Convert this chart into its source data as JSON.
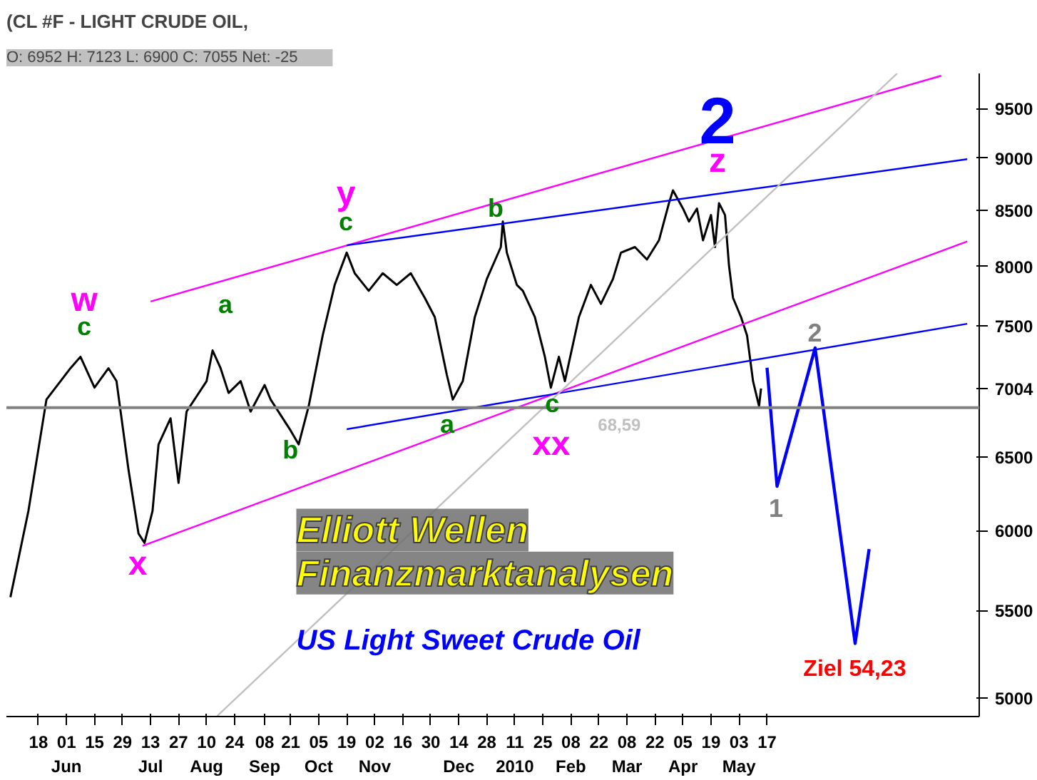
{
  "chart_data": {
    "type": "line",
    "title": "(CL #F - LIGHT CRUDE OIL,",
    "subtitle": "O: 6952   H: 7123   L: 6900   C: 7055   Net: -25",
    "log": "y",
    "grid": false,
    "marker": "none",
    "line_style": "solid",
    "xlim": [
      "2009-05-02",
      "2010-08-31"
    ],
    "ylim": [
      4900,
      9870
    ],
    "xticks": [
      {
        "value": "2009-05-18",
        "label": "18"
      },
      {
        "value": "2009-06-01",
        "label": "01\nJun"
      },
      {
        "value": "2009-06-15",
        "label": "15"
      },
      {
        "value": "2009-06-29",
        "label": "29"
      },
      {
        "value": "2009-07-13",
        "label": "13\nJul"
      },
      {
        "value": "2009-07-27",
        "label": "27"
      },
      {
        "value": "2009-08-10",
        "label": "10\nAug"
      },
      {
        "value": "2009-08-24",
        "label": "24"
      },
      {
        "value": "2009-09-08",
        "label": "08\nSep"
      },
      {
        "value": "2009-09-21",
        "label": "21"
      },
      {
        "value": "2009-10-05",
        "label": "05\nOct"
      },
      {
        "value": "2009-10-19",
        "label": "19"
      },
      {
        "value": "2009-11-02",
        "label": "02\nNov"
      },
      {
        "value": "2009-11-16",
        "label": "16"
      },
      {
        "value": "2009-11-30",
        "label": "30"
      },
      {
        "value": "2009-12-14",
        "label": "14\nDec"
      },
      {
        "value": "2009-12-28",
        "label": "28"
      },
      {
        "value": "2010-01-11",
        "label": "11\n2010"
      },
      {
        "value": "2010-01-25",
        "label": "25"
      },
      {
        "value": "2010-02-08",
        "label": "08\nFeb"
      },
      {
        "value": "2010-02-22",
        "label": "22"
      },
      {
        "value": "2010-03-08",
        "label": "08\nMar"
      },
      {
        "value": "2010-03-22",
        "label": "22"
      },
      {
        "value": "2010-04-05",
        "label": "05\nApr"
      },
      {
        "value": "2010-04-19",
        "label": "19"
      },
      {
        "value": "2010-05-03",
        "label": "03\nMay"
      },
      {
        "value": "2010-05-17",
        "label": "17"
      }
    ],
    "yticks": [
      5000,
      5500,
      6000,
      6500,
      7004,
      7500,
      8000,
      8500,
      9000,
      9500
    ],
    "series": [
      {
        "color": "#000000",
        "x": [
          "2009-05-04",
          "2009-05-13",
          "2009-05-22",
          "2009-06-03",
          "2009-06-08",
          "2009-06-15",
          "2009-06-22",
          "2009-06-26",
          "2009-07-02",
          "2009-07-07",
          "2009-07-10",
          "2009-07-14",
          "2009-07-17",
          "2009-07-23",
          "2009-07-27",
          "2009-07-31",
          "2009-08-10",
          "2009-08-13",
          "2009-08-17",
          "2009-08-21",
          "2009-08-27",
          "2009-09-01",
          "2009-09-08",
          "2009-09-11",
          "2009-09-21",
          "2009-09-25",
          "2009-09-30",
          "2009-10-07",
          "2009-10-13",
          "2009-10-19",
          "2009-10-23",
          "2009-10-30",
          "2009-11-06",
          "2009-11-13",
          "2009-11-20",
          "2009-11-27",
          "2009-12-02",
          "2009-12-08",
          "2009-12-11",
          "2009-12-16",
          "2009-12-22",
          "2009-12-28",
          "2010-01-04",
          "2010-01-05",
          "2010-01-07",
          "2010-01-12",
          "2010-01-15",
          "2010-01-21",
          "2010-01-26",
          "2010-01-29",
          "2010-02-02",
          "2010-02-05",
          "2010-02-12",
          "2010-02-18",
          "2010-02-23",
          "2010-03-01",
          "2010-03-05",
          "2010-03-12",
          "2010-03-18",
          "2010-03-24",
          "2010-03-29",
          "2010-03-31",
          "2010-04-05",
          "2010-04-08",
          "2010-04-12",
          "2010-04-15",
          "2010-04-19",
          "2010-04-21",
          "2010-04-23",
          "2010-04-26",
          "2010-04-28",
          "2010-04-30",
          "2010-05-04",
          "2010-05-07",
          "2010-05-10",
          "2010-05-13",
          "2010-05-14"
        ],
        "values": [
          5580,
          6130,
          6920,
          7160,
          7250,
          7010,
          7160,
          7060,
          6410,
          5980,
          5920,
          6130,
          6590,
          6780,
          6320,
          6830,
          7060,
          7300,
          7160,
          6970,
          7060,
          6830,
          7030,
          6920,
          6690,
          6590,
          6870,
          7420,
          7840,
          8120,
          7940,
          7790,
          7940,
          7840,
          7940,
          7730,
          7570,
          7110,
          6920,
          7060,
          7570,
          7890,
          8170,
          8400,
          8120,
          7840,
          7790,
          7570,
          7250,
          7010,
          7250,
          7060,
          7570,
          7840,
          7680,
          7890,
          8120,
          8170,
          8060,
          8230,
          8570,
          8690,
          8520,
          8400,
          8520,
          8230,
          8460,
          8170,
          8570,
          8460,
          8005,
          7730,
          7570,
          7420,
          7060,
          6870,
          7004
        ]
      },
      {
        "color": "#0000ff",
        "x": [
          "2010-05-17",
          "2010-05-22",
          "2010-06-10",
          "2010-06-30",
          "2010-07-07"
        ],
        "values": [
          7164,
          6296,
          7320,
          5306,
          5880
        ]
      },
      {
        "color": "#ff00ff",
        "x": [
          "2009-07-13",
          "2010-08-12"
        ],
        "values": [
          7700,
          9845
        ]
      },
      {
        "color": "#ff00ff",
        "x": [
          "2009-07-09",
          "2010-08-25"
        ],
        "values": [
          5901,
          8220
        ]
      },
      {
        "color": "#0000ff",
        "x": [
          "2009-10-19",
          "2010-08-25"
        ],
        "values": [
          8185,
          8990
        ]
      },
      {
        "color": "#0000ff",
        "x": [
          "2009-10-19",
          "2010-08-25"
        ],
        "values": [
          6700,
          7515
        ]
      },
      {
        "color": "#c0c0c0",
        "x": [
          "2009-08-15",
          "2010-07-21"
        ],
        "values": [
          4900,
          9870
        ]
      }
    ],
    "ref_lines": [
      {
        "axis": "y",
        "value": 6859,
        "color": "#808080"
      }
    ],
    "annotations": [
      "w",
      "c",
      "a",
      "b",
      "x",
      "y",
      "c",
      "b",
      "a",
      "c",
      "xx",
      "z",
      "2",
      "1",
      "2",
      "Ziel 54,23",
      "68,59",
      "Elliott Wellen",
      "Finanzmarktanalysen",
      "US Light Sweet Crude Oil"
    ]
  }
}
